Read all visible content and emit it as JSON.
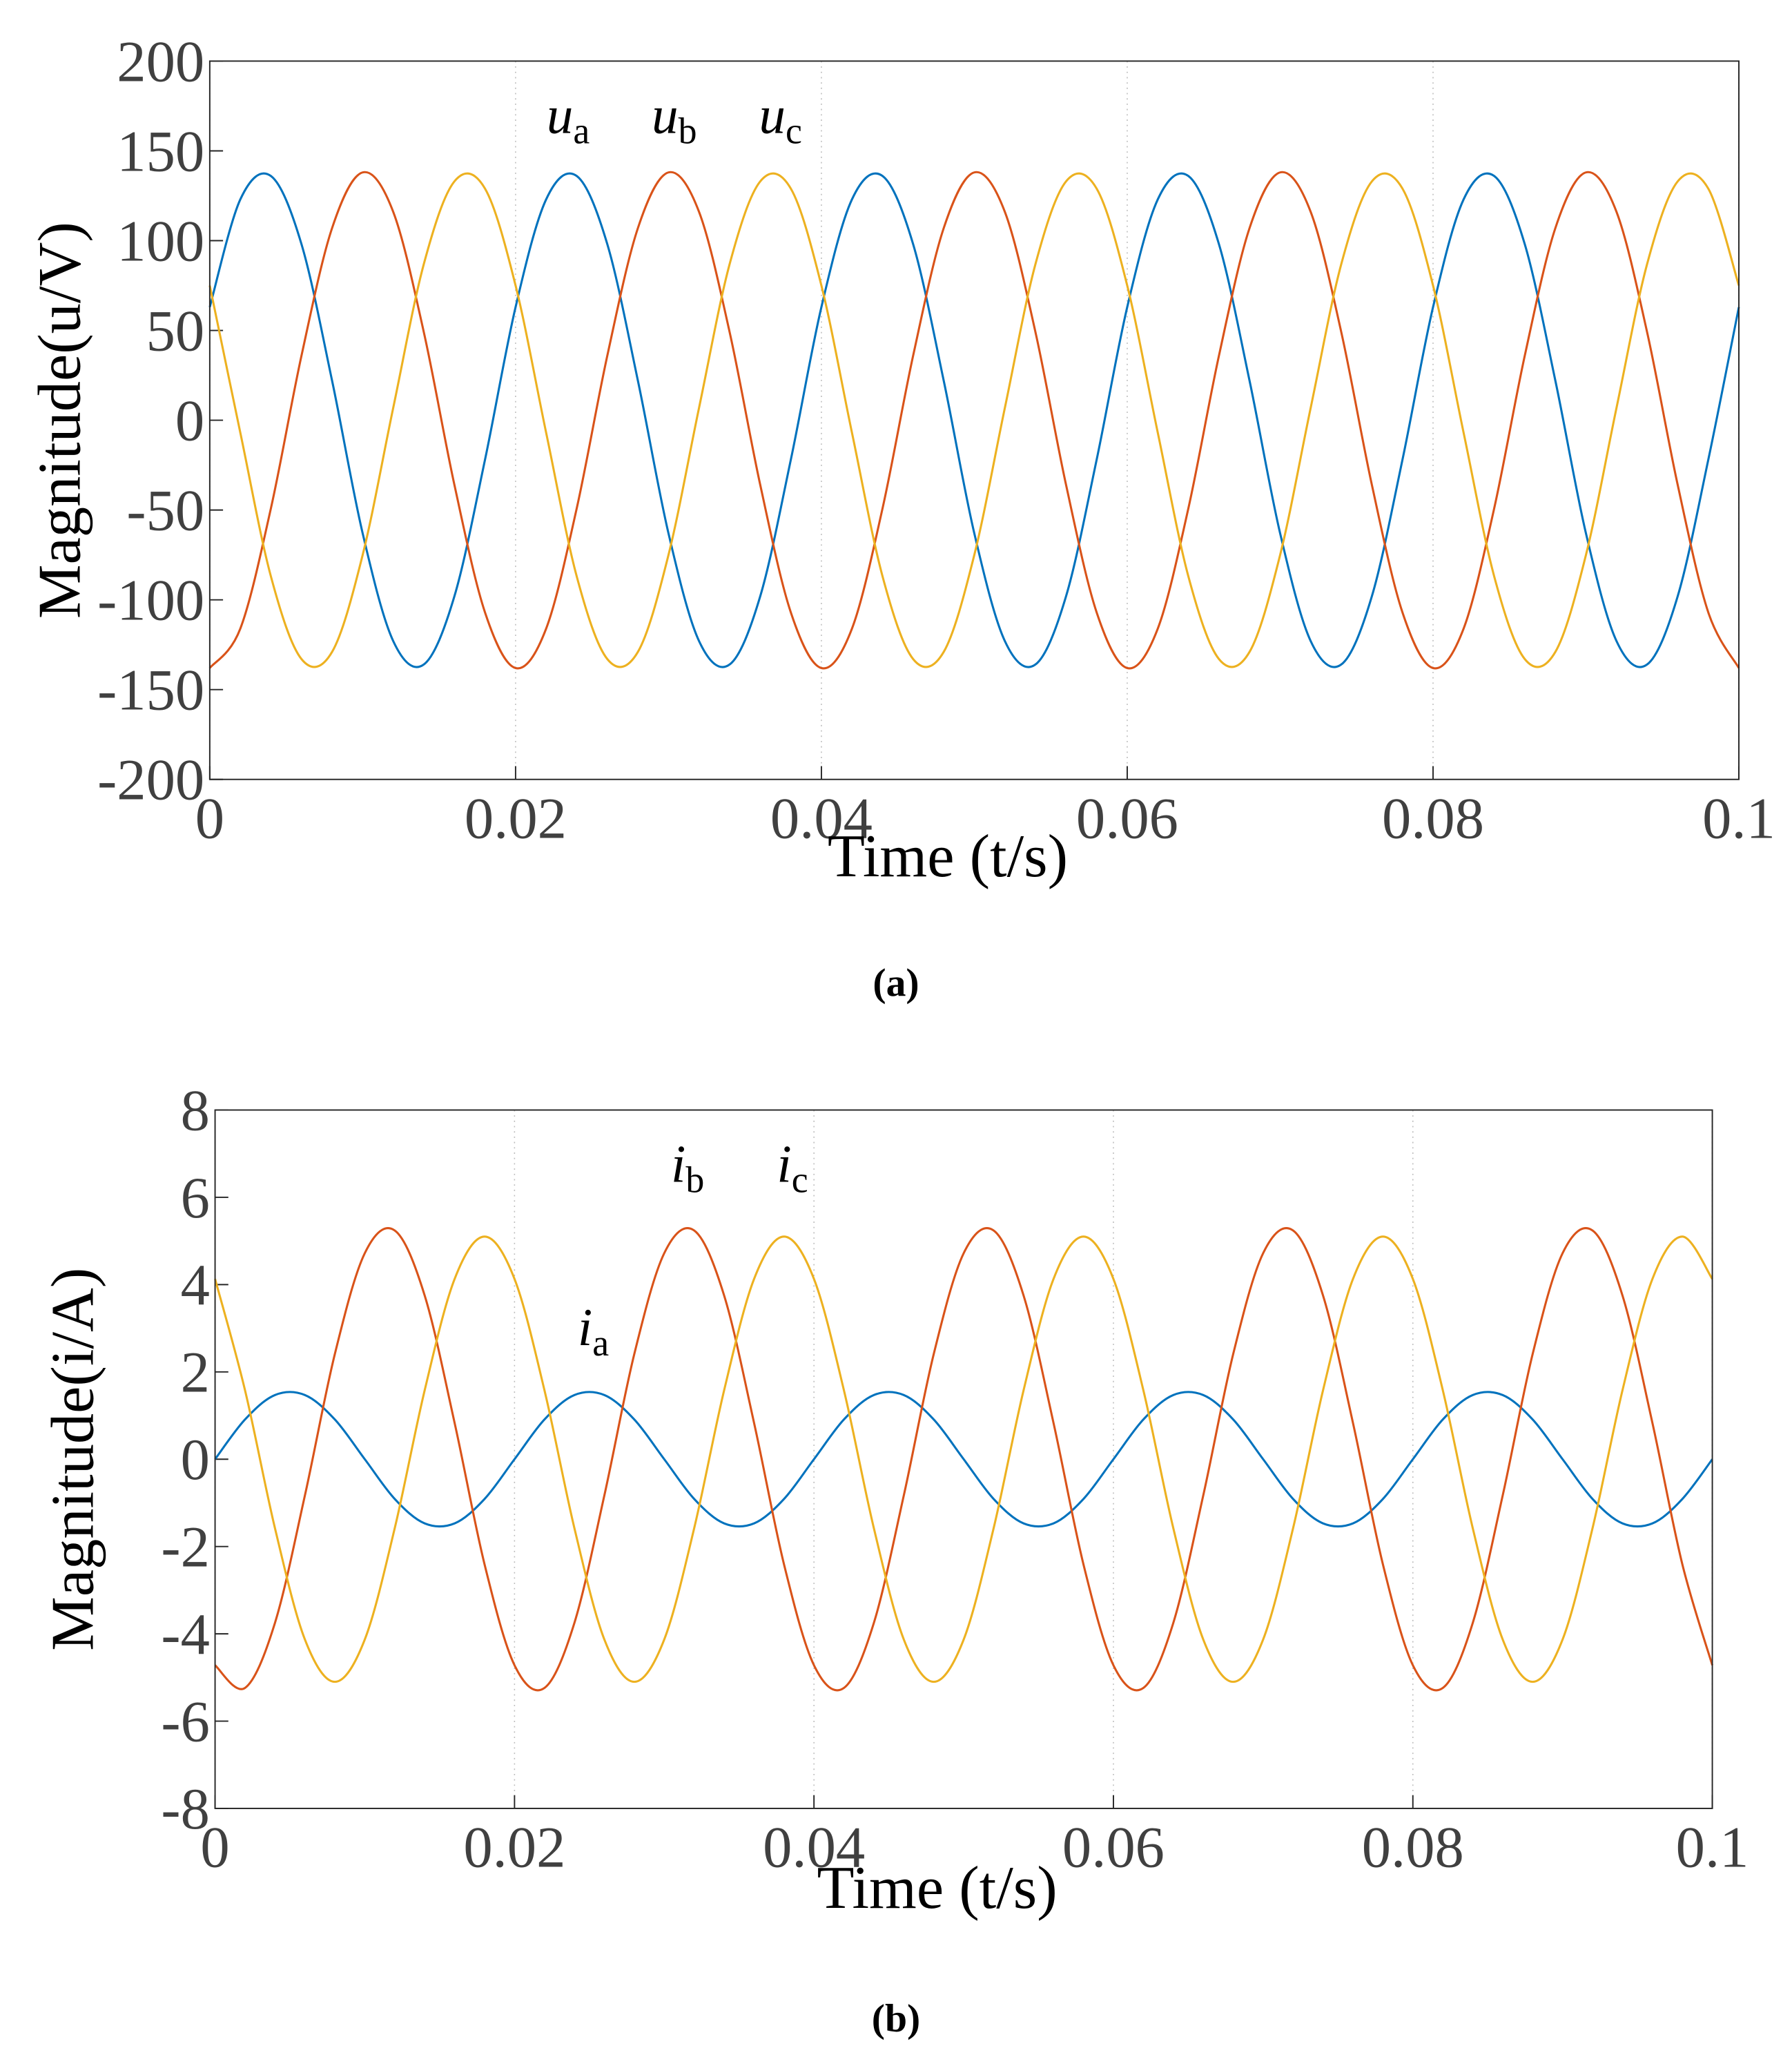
{
  "chart_data": [
    {
      "type": "line",
      "ylabel": "Magnitude(u/V)",
      "xlabel": "Time (t/s)",
      "caption": "(a)",
      "x": [
        0,
        0.002,
        0.004,
        0.006,
        0.008,
        0.01,
        0.012,
        0.014,
        0.016,
        0.018,
        0.02,
        0.022,
        0.024,
        0.026,
        0.028,
        0.03,
        0.032,
        0.034,
        0.036,
        0.038,
        0.04,
        0.042,
        0.044,
        0.046,
        0.048,
        0.05,
        0.052,
        0.054,
        0.056,
        0.058,
        0.06,
        0.062,
        0.064,
        0.066,
        0.068,
        0.07,
        0.072,
        0.074,
        0.076,
        0.078,
        0.08,
        0.082,
        0.084,
        0.086,
        0.088,
        0.09,
        0.092,
        0.094,
        0.096,
        0.098,
        0.1
      ],
      "xlim": [
        0,
        0.1
      ],
      "xticks": [
        0,
        0.02,
        0.04,
        0.06,
        0.08,
        0.1
      ],
      "ylim": [
        -200,
        200
      ],
      "yticks": [
        -200,
        -150,
        -100,
        -50,
        0,
        50,
        100,
        150,
        200
      ],
      "grid": true,
      "series": [
        {
          "name": "ua",
          "color": "#0072bd",
          "values": [
            63,
            123,
            136,
            98,
            22,
            -63,
            -123,
            -136,
            -98,
            -22,
            63,
            123,
            136,
            98,
            22,
            -63,
            -123,
            -136,
            -98,
            -22,
            63,
            123,
            136,
            98,
            22,
            -63,
            -123,
            -136,
            -98,
            -22,
            63,
            123,
            136,
            98,
            22,
            -63,
            -123,
            -136,
            -98,
            -22,
            63,
            123,
            136,
            98,
            22,
            -63,
            -123,
            -136,
            -98,
            -22,
            63
          ]
        },
        {
          "name": "ub",
          "color": "#d95319",
          "values": [
            -138,
            -116,
            -49,
            36,
            107,
            138,
            116,
            49,
            -36,
            -107,
            -138,
            -116,
            -49,
            36,
            107,
            138,
            116,
            49,
            -36,
            -107,
            -138,
            -116,
            -49,
            36,
            107,
            138,
            116,
            49,
            -36,
            -107,
            -138,
            -116,
            -49,
            36,
            107,
            138,
            116,
            49,
            -36,
            -107,
            -138,
            -116,
            -49,
            36,
            107,
            138,
            116,
            49,
            -36,
            -107,
            -138
          ]
        },
        {
          "name": "uc",
          "color": "#edb120",
          "values": [
            75,
            -7,
            -87,
            -133,
            -129,
            -75,
            7,
            87,
            133,
            129,
            75,
            -7,
            -87,
            -133,
            -129,
            -75,
            7,
            87,
            133,
            129,
            75,
            -7,
            -87,
            -133,
            -129,
            -75,
            7,
            87,
            133,
            129,
            75,
            -7,
            -87,
            -133,
            -129,
            -75,
            7,
            87,
            133,
            129,
            75,
            -7,
            -87,
            -133,
            -129,
            -75,
            7,
            87,
            133,
            129,
            75
          ]
        }
      ]
    },
    {
      "type": "line",
      "ylabel": "Magnitude(i/A)",
      "xlabel": "Time (t/s)",
      "caption": "(b)",
      "x": [
        0,
        0.002,
        0.004,
        0.006,
        0.008,
        0.01,
        0.012,
        0.014,
        0.016,
        0.018,
        0.02,
        0.022,
        0.024,
        0.026,
        0.028,
        0.03,
        0.032,
        0.034,
        0.036,
        0.038,
        0.04,
        0.042,
        0.044,
        0.046,
        0.048,
        0.05,
        0.052,
        0.054,
        0.056,
        0.058,
        0.06,
        0.062,
        0.064,
        0.066,
        0.068,
        0.07,
        0.072,
        0.074,
        0.076,
        0.078,
        0.08,
        0.082,
        0.084,
        0.086,
        0.088,
        0.09,
        0.092,
        0.094,
        0.096,
        0.098,
        0.1
      ],
      "xlim": [
        0,
        0.1
      ],
      "xticks": [
        0,
        0.02,
        0.04,
        0.06,
        0.08,
        0.1
      ],
      "ylim": [
        -8,
        8
      ],
      "yticks": [
        -8,
        -6,
        -4,
        -2,
        0,
        2,
        4,
        6,
        8
      ],
      "grid": true,
      "series": [
        {
          "name": "ia",
          "color": "#0072bd",
          "values": [
            0,
            0.91,
            1.47,
            1.47,
            0.91,
            0,
            -0.91,
            -1.47,
            -1.47,
            -0.91,
            0,
            0.91,
            1.47,
            1.47,
            0.91,
            0,
            -0.91,
            -1.47,
            -1.47,
            -0.91,
            0,
            0.91,
            1.47,
            1.47,
            0.91,
            0,
            -0.91,
            -1.47,
            -1.47,
            -0.91,
            0,
            0.91,
            1.47,
            1.47,
            0.91,
            0,
            -0.91,
            -1.47,
            -1.47,
            -0.91,
            0,
            0.91,
            1.47,
            1.47,
            0.91,
            0,
            -0.91,
            -1.47,
            -1.47,
            -0.91,
            0
          ]
        },
        {
          "name": "ib",
          "color": "#d95319",
          "values": [
            -4.72,
            -5.24,
            -3.75,
            -0.83,
            2.41,
            4.72,
            5.24,
            3.75,
            0.83,
            -2.41,
            -4.72,
            -5.24,
            -3.75,
            -0.83,
            2.41,
            4.72,
            5.24,
            3.75,
            0.83,
            -2.41,
            -4.72,
            -5.24,
            -3.75,
            -0.83,
            2.41,
            4.72,
            5.24,
            3.75,
            0.83,
            -2.41,
            -4.72,
            -5.24,
            -3.75,
            -0.83,
            2.41,
            4.72,
            5.24,
            3.75,
            0.83,
            -2.41,
            -4.72,
            -5.24,
            -3.75,
            -0.83,
            2.41,
            4.72,
            5.24,
            3.75,
            0.83,
            -2.41,
            -4.72
          ]
        },
        {
          "name": "ic",
          "color": "#edb120",
          "values": [
            4.13,
            1.58,
            -1.58,
            -4.13,
            -5.1,
            -4.13,
            -1.58,
            1.58,
            4.13,
            5.1,
            4.13,
            1.58,
            -1.58,
            -4.13,
            -5.1,
            -4.13,
            -1.58,
            1.58,
            4.13,
            5.1,
            4.13,
            1.58,
            -1.58,
            -4.13,
            -5.1,
            -4.13,
            -1.58,
            1.58,
            4.13,
            5.1,
            4.13,
            1.58,
            -1.58,
            -4.13,
            -5.1,
            -4.13,
            -1.58,
            1.58,
            4.13,
            5.1,
            4.13,
            1.58,
            -1.58,
            -4.13,
            -5.1,
            -4.13,
            -1.58,
            1.58,
            4.13,
            5.1,
            4.13
          ]
        }
      ]
    }
  ]
}
